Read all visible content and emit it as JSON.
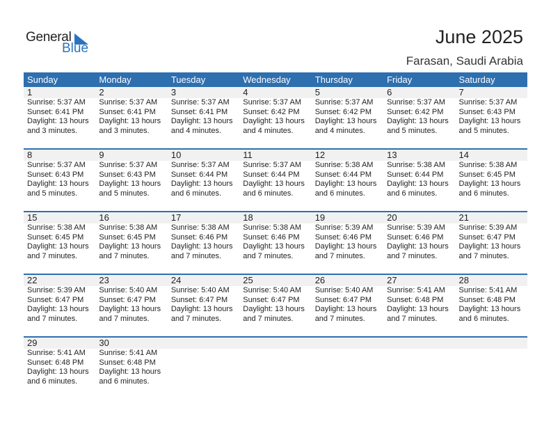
{
  "logo": {
    "word1": "General",
    "word2": "Blue"
  },
  "title": "June 2025",
  "location": "Farasan, Saudi Arabia",
  "colors": {
    "accent": "#2e6fb0",
    "logo_blue": "#2a74bf"
  },
  "weekdays": [
    "Sunday",
    "Monday",
    "Tuesday",
    "Wednesday",
    "Thursday",
    "Friday",
    "Saturday"
  ],
  "days": [
    {
      "day": "1",
      "sunrise": "Sunrise: 5:37 AM",
      "sunset": "Sunset: 6:41 PM",
      "daylight": "Daylight: 13 hours",
      "minutes": "and 3 minutes."
    },
    {
      "day": "2",
      "sunrise": "Sunrise: 5:37 AM",
      "sunset": "Sunset: 6:41 PM",
      "daylight": "Daylight: 13 hours",
      "minutes": "and 3 minutes."
    },
    {
      "day": "3",
      "sunrise": "Sunrise: 5:37 AM",
      "sunset": "Sunset: 6:41 PM",
      "daylight": "Daylight: 13 hours",
      "minutes": "and 4 minutes."
    },
    {
      "day": "4",
      "sunrise": "Sunrise: 5:37 AM",
      "sunset": "Sunset: 6:42 PM",
      "daylight": "Daylight: 13 hours",
      "minutes": "and 4 minutes."
    },
    {
      "day": "5",
      "sunrise": "Sunrise: 5:37 AM",
      "sunset": "Sunset: 6:42 PM",
      "daylight": "Daylight: 13 hours",
      "minutes": "and 4 minutes."
    },
    {
      "day": "6",
      "sunrise": "Sunrise: 5:37 AM",
      "sunset": "Sunset: 6:42 PM",
      "daylight": "Daylight: 13 hours",
      "minutes": "and 5 minutes."
    },
    {
      "day": "7",
      "sunrise": "Sunrise: 5:37 AM",
      "sunset": "Sunset: 6:43 PM",
      "daylight": "Daylight: 13 hours",
      "minutes": "and 5 minutes."
    },
    {
      "day": "8",
      "sunrise": "Sunrise: 5:37 AM",
      "sunset": "Sunset: 6:43 PM",
      "daylight": "Daylight: 13 hours",
      "minutes": "and 5 minutes."
    },
    {
      "day": "9",
      "sunrise": "Sunrise: 5:37 AM",
      "sunset": "Sunset: 6:43 PM",
      "daylight": "Daylight: 13 hours",
      "minutes": "and 5 minutes."
    },
    {
      "day": "10",
      "sunrise": "Sunrise: 5:37 AM",
      "sunset": "Sunset: 6:44 PM",
      "daylight": "Daylight: 13 hours",
      "minutes": "and 6 minutes."
    },
    {
      "day": "11",
      "sunrise": "Sunrise: 5:37 AM",
      "sunset": "Sunset: 6:44 PM",
      "daylight": "Daylight: 13 hours",
      "minutes": "and 6 minutes."
    },
    {
      "day": "12",
      "sunrise": "Sunrise: 5:38 AM",
      "sunset": "Sunset: 6:44 PM",
      "daylight": "Daylight: 13 hours",
      "minutes": "and 6 minutes."
    },
    {
      "day": "13",
      "sunrise": "Sunrise: 5:38 AM",
      "sunset": "Sunset: 6:44 PM",
      "daylight": "Daylight: 13 hours",
      "minutes": "and 6 minutes."
    },
    {
      "day": "14",
      "sunrise": "Sunrise: 5:38 AM",
      "sunset": "Sunset: 6:45 PM",
      "daylight": "Daylight: 13 hours",
      "minutes": "and 6 minutes."
    },
    {
      "day": "15",
      "sunrise": "Sunrise: 5:38 AM",
      "sunset": "Sunset: 6:45 PM",
      "daylight": "Daylight: 13 hours",
      "minutes": "and 7 minutes."
    },
    {
      "day": "16",
      "sunrise": "Sunrise: 5:38 AM",
      "sunset": "Sunset: 6:45 PM",
      "daylight": "Daylight: 13 hours",
      "minutes": "and 7 minutes."
    },
    {
      "day": "17",
      "sunrise": "Sunrise: 5:38 AM",
      "sunset": "Sunset: 6:46 PM",
      "daylight": "Daylight: 13 hours",
      "minutes": "and 7 minutes."
    },
    {
      "day": "18",
      "sunrise": "Sunrise: 5:38 AM",
      "sunset": "Sunset: 6:46 PM",
      "daylight": "Daylight: 13 hours",
      "minutes": "and 7 minutes."
    },
    {
      "day": "19",
      "sunrise": "Sunrise: 5:39 AM",
      "sunset": "Sunset: 6:46 PM",
      "daylight": "Daylight: 13 hours",
      "minutes": "and 7 minutes."
    },
    {
      "day": "20",
      "sunrise": "Sunrise: 5:39 AM",
      "sunset": "Sunset: 6:46 PM",
      "daylight": "Daylight: 13 hours",
      "minutes": "and 7 minutes."
    },
    {
      "day": "21",
      "sunrise": "Sunrise: 5:39 AM",
      "sunset": "Sunset: 6:47 PM",
      "daylight": "Daylight: 13 hours",
      "minutes": "and 7 minutes."
    },
    {
      "day": "22",
      "sunrise": "Sunrise: 5:39 AM",
      "sunset": "Sunset: 6:47 PM",
      "daylight": "Daylight: 13 hours",
      "minutes": "and 7 minutes."
    },
    {
      "day": "23",
      "sunrise": "Sunrise: 5:40 AM",
      "sunset": "Sunset: 6:47 PM",
      "daylight": "Daylight: 13 hours",
      "minutes": "and 7 minutes."
    },
    {
      "day": "24",
      "sunrise": "Sunrise: 5:40 AM",
      "sunset": "Sunset: 6:47 PM",
      "daylight": "Daylight: 13 hours",
      "minutes": "and 7 minutes."
    },
    {
      "day": "25",
      "sunrise": "Sunrise: 5:40 AM",
      "sunset": "Sunset: 6:47 PM",
      "daylight": "Daylight: 13 hours",
      "minutes": "and 7 minutes."
    },
    {
      "day": "26",
      "sunrise": "Sunrise: 5:40 AM",
      "sunset": "Sunset: 6:47 PM",
      "daylight": "Daylight: 13 hours",
      "minutes": "and 7 minutes."
    },
    {
      "day": "27",
      "sunrise": "Sunrise: 5:41 AM",
      "sunset": "Sunset: 6:48 PM",
      "daylight": "Daylight: 13 hours",
      "minutes": "and 7 minutes."
    },
    {
      "day": "28",
      "sunrise": "Sunrise: 5:41 AM",
      "sunset": "Sunset: 6:48 PM",
      "daylight": "Daylight: 13 hours",
      "minutes": "and 6 minutes."
    },
    {
      "day": "29",
      "sunrise": "Sunrise: 5:41 AM",
      "sunset": "Sunset: 6:48 PM",
      "daylight": "Daylight: 13 hours",
      "minutes": "and 6 minutes."
    },
    {
      "day": "30",
      "sunrise": "Sunrise: 5:41 AM",
      "sunset": "Sunset: 6:48 PM",
      "daylight": "Daylight: 13 hours",
      "minutes": "and 6 minutes."
    }
  ]
}
